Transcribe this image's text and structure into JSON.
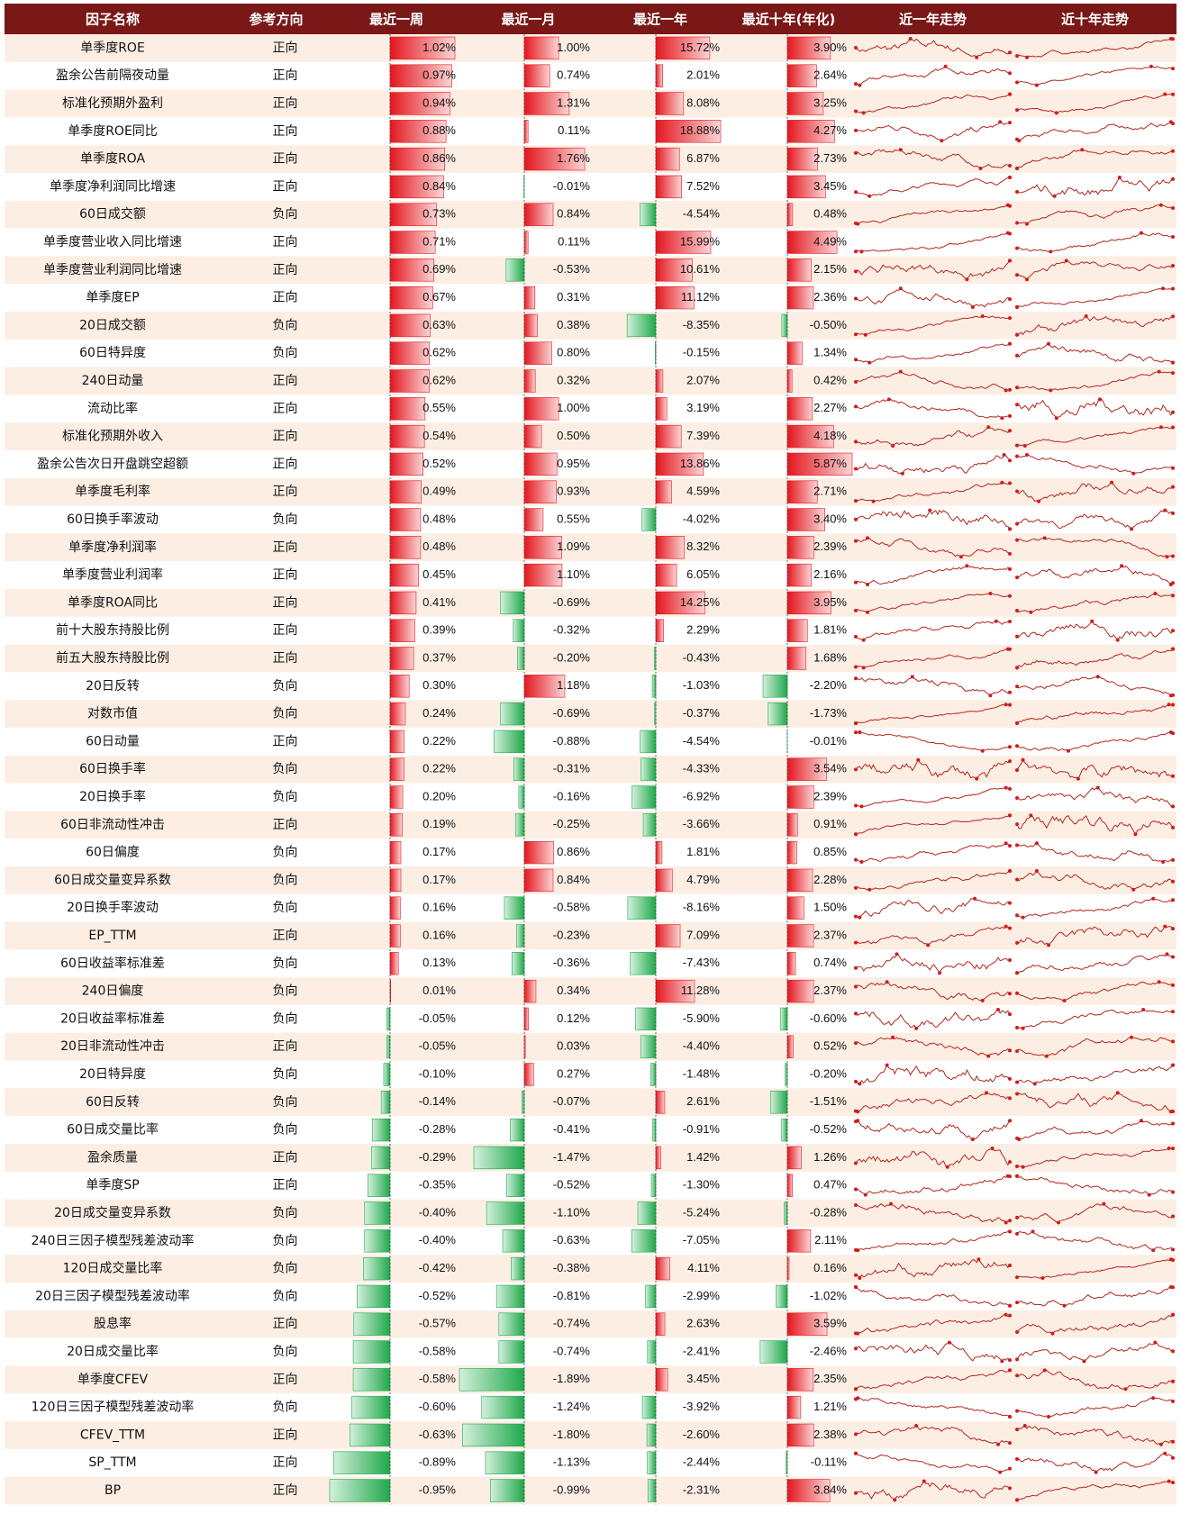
{
  "table": {
    "headers": [
      "因子名称",
      "参考方向",
      "最近一周",
      "最近一月",
      "最近一年",
      "最近十年(年化)",
      "近一年走势",
      "近十年走势"
    ],
    "rows": [
      [
        "单季度ROE",
        "正向",
        "1.02%",
        "1.00%",
        "15.72%",
        "3.90%"
      ],
      [
        "盈余公告前隔夜动量",
        "正向",
        "0.97%",
        "0.74%",
        "2.01%",
        "2.64%"
      ],
      [
        "标准化预期外盈利",
        "正向",
        "0.94%",
        "1.31%",
        "8.08%",
        "3.25%"
      ],
      [
        "单季度ROE同比",
        "正向",
        "0.88%",
        "0.11%",
        "18.88%",
        "4.27%"
      ],
      [
        "单季度ROA",
        "正向",
        "0.86%",
        "1.76%",
        "6.87%",
        "2.73%"
      ],
      [
        "单季度净利润同比增速",
        "正向",
        "0.84%",
        "-0.01%",
        "7.52%",
        "3.45%"
      ],
      [
        "60日成交额",
        "负向",
        "0.73%",
        "0.84%",
        "-4.54%",
        "0.48%"
      ],
      [
        "单季度营业收入同比增速",
        "正向",
        "0.71%",
        "0.11%",
        "15.99%",
        "4.49%"
      ],
      [
        "单季度营业利润同比增速",
        "正向",
        "0.69%",
        "-0.53%",
        "10.61%",
        "2.15%"
      ],
      [
        "单季度EP",
        "正向",
        "0.67%",
        "0.31%",
        "11.12%",
        "2.36%"
      ],
      [
        "20日成交额",
        "负向",
        "0.63%",
        "0.38%",
        "-8.35%",
        "-0.50%"
      ],
      [
        "60日特异度",
        "负向",
        "0.62%",
        "0.80%",
        "-0.15%",
        "1.34%"
      ],
      [
        "240日动量",
        "正向",
        "0.62%",
        "0.32%",
        "2.07%",
        "0.42%"
      ],
      [
        "流动比率",
        "正向",
        "0.55%",
        "1.00%",
        "3.19%",
        "2.27%"
      ],
      [
        "标准化预期外收入",
        "正向",
        "0.54%",
        "0.50%",
        "7.39%",
        "4.18%"
      ],
      [
        "盈余公告次日开盘跳空超额",
        "正向",
        "0.52%",
        "0.95%",
        "13.86%",
        "5.87%"
      ],
      [
        "单季度毛利率",
        "正向",
        "0.49%",
        "0.93%",
        "4.59%",
        "2.71%"
      ],
      [
        "60日换手率波动",
        "负向",
        "0.48%",
        "0.55%",
        "-4.02%",
        "3.40%"
      ],
      [
        "单季度净利润率",
        "正向",
        "0.48%",
        "1.09%",
        "8.32%",
        "2.39%"
      ],
      [
        "单季度营业利润率",
        "正向",
        "0.45%",
        "1.10%",
        "6.05%",
        "2.16%"
      ],
      [
        "单季度ROA同比",
        "正向",
        "0.41%",
        "-0.69%",
        "14.25%",
        "3.95%"
      ],
      [
        "前十大股东持股比例",
        "正向",
        "0.39%",
        "-0.32%",
        "2.29%",
        "1.81%"
      ],
      [
        "前五大股东持股比例",
        "正向",
        "0.37%",
        "-0.20%",
        "-0.43%",
        "1.68%"
      ],
      [
        "20日反转",
        "负向",
        "0.30%",
        "1.18%",
        "-1.03%",
        "-2.20%"
      ],
      [
        "对数市值",
        "负向",
        "0.24%",
        "-0.69%",
        "-0.37%",
        "-1.73%"
      ],
      [
        "60日动量",
        "正向",
        "0.22%",
        "-0.88%",
        "-4.54%",
        "-0.01%"
      ],
      [
        "60日换手率",
        "负向",
        "0.22%",
        "-0.31%",
        "-4.33%",
        "3.54%"
      ],
      [
        "20日换手率",
        "负向",
        "0.20%",
        "-0.16%",
        "-6.92%",
        "2.39%"
      ],
      [
        "60日非流动性冲击",
        "正向",
        "0.19%",
        "-0.25%",
        "-3.66%",
        "0.91%"
      ],
      [
        "60日偏度",
        "负向",
        "0.17%",
        "0.86%",
        "1.81%",
        "0.85%"
      ],
      [
        "60日成交量变异系数",
        "负向",
        "0.17%",
        "0.84%",
        "4.79%",
        "2.28%"
      ],
      [
        "20日换手率波动",
        "负向",
        "0.16%",
        "-0.58%",
        "-8.16%",
        "1.50%"
      ],
      [
        "EP_TTM",
        "正向",
        "0.16%",
        "-0.23%",
        "7.09%",
        "2.37%"
      ],
      [
        "60日收益率标准差",
        "负向",
        "0.13%",
        "-0.36%",
        "-7.43%",
        "0.74%"
      ],
      [
        "240日偏度",
        "负向",
        "0.01%",
        "0.34%",
        "11.28%",
        "2.37%"
      ],
      [
        "20日收益率标准差",
        "负向",
        "-0.05%",
        "0.12%",
        "-5.90%",
        "-0.60%"
      ],
      [
        "20日非流动性冲击",
        "正向",
        "-0.05%",
        "0.03%",
        "-4.40%",
        "0.52%"
      ],
      [
        "20日特异度",
        "负向",
        "-0.10%",
        "0.27%",
        "-1.48%",
        "-0.20%"
      ],
      [
        "60日反转",
        "负向",
        "-0.14%",
        "-0.07%",
        "2.61%",
        "-1.51%"
      ],
      [
        "60日成交量比率",
        "负向",
        "-0.28%",
        "-0.41%",
        "-0.91%",
        "-0.52%"
      ],
      [
        "盈余质量",
        "正向",
        "-0.29%",
        "-1.47%",
        "1.42%",
        "1.26%"
      ],
      [
        "单季度SP",
        "正向",
        "-0.35%",
        "-0.52%",
        "-1.30%",
        "0.47%"
      ],
      [
        "20日成交量变异系数",
        "负向",
        "-0.40%",
        "-1.10%",
        "-5.24%",
        "-0.28%"
      ],
      [
        "240日三因子模型残差波动率",
        "负向",
        "-0.40%",
        "-0.63%",
        "-7.05%",
        "2.11%"
      ],
      [
        "120日成交量比率",
        "负向",
        "-0.42%",
        "-0.38%",
        "4.11%",
        "0.16%"
      ],
      [
        "20日三因子模型残差波动率",
        "负向",
        "-0.52%",
        "-0.81%",
        "-2.99%",
        "-1.02%"
      ],
      [
        "股息率",
        "正向",
        "-0.57%",
        "-0.74%",
        "2.63%",
        "3.59%"
      ],
      [
        "20日成交量比率",
        "负向",
        "-0.58%",
        "-0.74%",
        "-2.41%",
        "-2.46%"
      ],
      [
        "单季度CFEV",
        "正向",
        "-0.58%",
        "-1.89%",
        "3.45%",
        "2.35%"
      ],
      [
        "120日三因子模型残差波动率",
        "负向",
        "-0.60%",
        "-1.24%",
        "-3.92%",
        "1.21%"
      ],
      [
        "CFEV_TTM",
        "正向",
        "-0.63%",
        "-1.80%",
        "-2.60%",
        "2.38%"
      ],
      [
        "SP_TTM",
        "正向",
        "-0.89%",
        "-1.13%",
        "-2.44%",
        "-0.11%"
      ],
      [
        "BP",
        "正向",
        "-0.95%",
        "-0.99%",
        "-2.31%",
        "3.84%"
      ]
    ]
  }
}
